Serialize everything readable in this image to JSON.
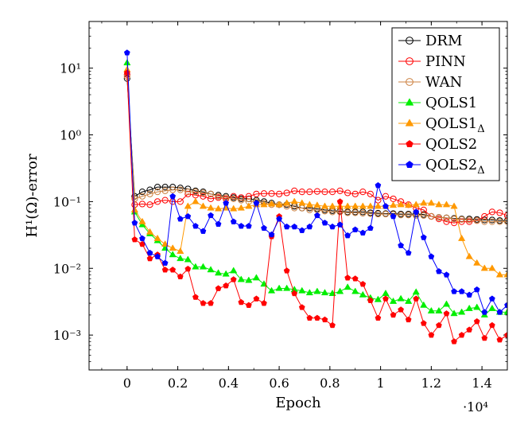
{
  "chart_data": {
    "type": "line",
    "title": "",
    "xlabel": "Epoch",
    "ylabel": "H¹(Ω)-error",
    "x_multiplier_label": "·10⁴",
    "y_scale": "log",
    "xlim": [
      -0.15,
      1.5
    ],
    "ylim": [
      0.0003,
      50
    ],
    "x_ticks": [
      0,
      0.2,
      0.4,
      0.6,
      0.8,
      1,
      1.2,
      1.4
    ],
    "x_tick_labels": [
      "0",
      "0.2",
      "0.4",
      "0.6",
      "0.8",
      "1",
      "1.2",
      "1.4"
    ],
    "y_ticks": [
      0.001,
      0.01,
      0.1,
      1,
      10
    ],
    "y_tick_labels": [
      "10⁻³",
      "10⁻²",
      "10⁻¹",
      "10⁰",
      "10¹"
    ],
    "legend_position": "top-right",
    "x": [
      0,
      0.03,
      0.06,
      0.09,
      0.12,
      0.15,
      0.18,
      0.21,
      0.24,
      0.27,
      0.3,
      0.33,
      0.36,
      0.39,
      0.42,
      0.45,
      0.48,
      0.51,
      0.54,
      0.57,
      0.6,
      0.63,
      0.66,
      0.69,
      0.72,
      0.75,
      0.78,
      0.81,
      0.84,
      0.87,
      0.9,
      0.93,
      0.96,
      0.99,
      1.02,
      1.05,
      1.08,
      1.11,
      1.14,
      1.17,
      1.2,
      1.23,
      1.26,
      1.29,
      1.32,
      1.35,
      1.38,
      1.41,
      1.44,
      1.47,
      1.5
    ],
    "series": [
      {
        "name": "DRM",
        "color": "#000000",
        "marker": "circle-open",
        "values": [
          7,
          0.12,
          0.14,
          0.15,
          0.165,
          0.165,
          0.165,
          0.16,
          0.155,
          0.145,
          0.14,
          0.13,
          0.125,
          0.12,
          0.115,
          0.11,
          0.11,
          0.105,
          0.1,
          0.095,
          0.09,
          0.09,
          0.085,
          0.08,
          0.08,
          0.078,
          0.075,
          0.073,
          0.072,
          0.07,
          0.07,
          0.07,
          0.068,
          0.067,
          0.066,
          0.066,
          0.065,
          0.065,
          0.065,
          0.064,
          0.06,
          0.058,
          0.057,
          0.056,
          0.055,
          0.055,
          0.054,
          0.053,
          0.053,
          0.052,
          0.052
        ]
      },
      {
        "name": "PINN",
        "color": "#ff0000",
        "marker": "circle-open",
        "values": [
          8,
          0.09,
          0.092,
          0.09,
          0.1,
          0.105,
          0.1,
          0.1,
          0.13,
          0.125,
          0.12,
          0.11,
          0.115,
          0.11,
          0.12,
          0.115,
          0.12,
          0.13,
          0.132,
          0.132,
          0.13,
          0.135,
          0.145,
          0.14,
          0.14,
          0.142,
          0.14,
          0.14,
          0.145,
          0.135,
          0.13,
          0.14,
          0.13,
          0.105,
          0.12,
          0.11,
          0.1,
          0.09,
          0.08,
          0.075,
          0.06,
          0.055,
          0.05,
          0.048,
          0.05,
          0.05,
          0.052,
          0.06,
          0.07,
          0.068,
          0.062
        ]
      },
      {
        "name": "WAN",
        "color": "#cc8040",
        "marker": "circle-open",
        "values": [
          7.5,
          0.11,
          0.12,
          0.13,
          0.14,
          0.145,
          0.15,
          0.15,
          0.14,
          0.14,
          0.135,
          0.13,
          0.12,
          0.115,
          0.11,
          0.105,
          0.1,
          0.1,
          0.095,
          0.09,
          0.09,
          0.085,
          0.08,
          0.08,
          0.075,
          0.075,
          0.072,
          0.07,
          0.07,
          0.068,
          0.068,
          0.067,
          0.066,
          0.065,
          0.065,
          0.064,
          0.063,
          0.063,
          0.062,
          0.062,
          0.06,
          0.058,
          0.057,
          0.055,
          0.054,
          0.053,
          0.052,
          0.05,
          0.05,
          0.05,
          0.05
        ]
      },
      {
        "name": "QOLS1",
        "color": "#00ee00",
        "marker": "triangle",
        "values": [
          12,
          0.07,
          0.045,
          0.033,
          0.026,
          0.02,
          0.016,
          0.014,
          0.0135,
          0.0105,
          0.0105,
          0.0095,
          0.0085,
          0.0082,
          0.0092,
          0.0068,
          0.0066,
          0.0072,
          0.0058,
          0.0046,
          0.005,
          0.005,
          0.0048,
          0.0046,
          0.0043,
          0.0045,
          0.0043,
          0.0042,
          0.0045,
          0.0052,
          0.0045,
          0.004,
          0.0036,
          0.0034,
          0.0042,
          0.0032,
          0.0035,
          0.0032,
          0.0044,
          0.0028,
          0.0023,
          0.0023,
          0.0029,
          0.0021,
          0.0022,
          0.0025,
          0.0026,
          0.002,
          0.0025,
          0.0022,
          0.0022
        ]
      },
      {
        "name": "QOLS1_Δ",
        "color": "#ff9900",
        "marker": "triangle",
        "values": [
          9.5,
          0.075,
          0.05,
          0.035,
          0.028,
          0.023,
          0.02,
          0.018,
          0.085,
          0.1,
          0.085,
          0.08,
          0.078,
          0.08,
          0.078,
          0.08,
          0.085,
          0.09,
          0.09,
          0.092,
          0.09,
          0.095,
          0.1,
          0.095,
          0.09,
          0.088,
          0.085,
          0.085,
          0.085,
          0.085,
          0.085,
          0.085,
          0.085,
          0.085,
          0.085,
          0.088,
          0.09,
          0.088,
          0.09,
          0.095,
          0.095,
          0.09,
          0.09,
          0.085,
          0.028,
          0.015,
          0.012,
          0.01,
          0.01,
          0.008,
          0.008
        ]
      },
      {
        "name": "QOLS2",
        "color": "#ff0000",
        "marker": "pentagon",
        "values": [
          8.5,
          0.027,
          0.023,
          0.014,
          0.016,
          0.0095,
          0.0095,
          0.0075,
          0.0098,
          0.0037,
          0.003,
          0.003,
          0.005,
          0.0055,
          0.0068,
          0.0031,
          0.0028,
          0.0035,
          0.003,
          0.03,
          0.06,
          0.0092,
          0.0042,
          0.0026,
          0.0018,
          0.0018,
          0.0017,
          0.0014,
          0.1,
          0.0072,
          0.007,
          0.0058,
          0.0033,
          0.0018,
          0.0035,
          0.002,
          0.0024,
          0.0017,
          0.0035,
          0.0015,
          0.001,
          0.0014,
          0.0021,
          0.0008,
          0.001,
          0.0012,
          0.0016,
          0.0009,
          0.0014,
          0.00085,
          0.001
        ]
      },
      {
        "name": "QOLS2_Δ",
        "color": "#0000ff",
        "marker": "pentagon",
        "values": [
          17,
          0.048,
          0.028,
          0.017,
          0.015,
          0.012,
          0.12,
          0.055,
          0.06,
          0.043,
          0.036,
          0.062,
          0.046,
          0.095,
          0.05,
          0.043,
          0.043,
          0.095,
          0.04,
          0.032,
          0.055,
          0.042,
          0.042,
          0.037,
          0.042,
          0.062,
          0.048,
          0.042,
          0.045,
          0.031,
          0.038,
          0.034,
          0.04,
          0.175,
          0.085,
          0.06,
          0.022,
          0.017,
          0.07,
          0.029,
          0.015,
          0.009,
          0.008,
          0.0045,
          0.0045,
          0.004,
          0.0048,
          0.0022,
          0.0035,
          0.0022,
          0.0028
        ]
      }
    ]
  }
}
